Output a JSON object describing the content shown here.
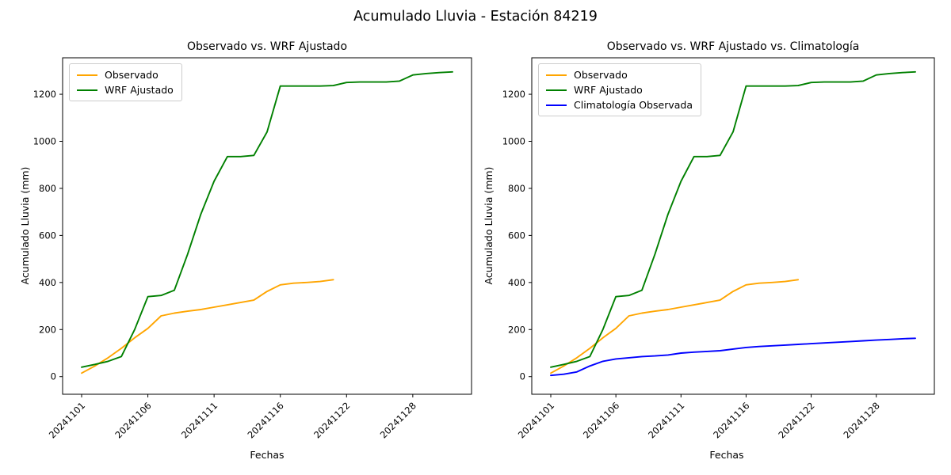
{
  "figure": {
    "suptitle": "Acumulado Lluvia - Estación 84219"
  },
  "chart_data": [
    {
      "type": "line",
      "title": "Observado vs. WRF Ajustado",
      "xlabel": "Fechas",
      "ylabel": "Acumulado Lluvia (mm)",
      "x_tick_labels": [
        "20241101",
        "20241106",
        "20241111",
        "20241116",
        "20241122",
        "20241128"
      ],
      "x_tick_positions": [
        0,
        5,
        10,
        15,
        20,
        25
      ],
      "n_points": 29,
      "ylim": [
        -75,
        1355
      ],
      "yticks": [
        0,
        200,
        400,
        600,
        800,
        1000,
        1200
      ],
      "grid": false,
      "legend_position": "upper-left",
      "series": [
        {
          "name": "Observado",
          "color": "#FFA500",
          "values": [
            15,
            45,
            80,
            120,
            165,
            205,
            258,
            270,
            278,
            285,
            295,
            305,
            315,
            325,
            362,
            390,
            397,
            400,
            404,
            412
          ]
        },
        {
          "name": "WRF Ajustado",
          "color": "#008000",
          "values": [
            40,
            52,
            65,
            85,
            200,
            340,
            345,
            367,
            520,
            690,
            830,
            935,
            935,
            940,
            1040,
            1235,
            1235,
            1235,
            1235,
            1237,
            1250,
            1252,
            1252,
            1252,
            1256,
            1282,
            1288,
            1292,
            1295
          ]
        }
      ]
    },
    {
      "type": "line",
      "title": "Observado vs. WRF Ajustado vs. Climatología",
      "xlabel": "Fechas",
      "ylabel": "Acumulado Lluvia (mm)",
      "x_tick_labels": [
        "20241101",
        "20241106",
        "20241111",
        "20241116",
        "20241122",
        "20241128"
      ],
      "x_tick_positions": [
        0,
        5,
        10,
        15,
        20,
        25
      ],
      "n_points": 29,
      "ylim": [
        -75,
        1355
      ],
      "yticks": [
        0,
        200,
        400,
        600,
        800,
        1000,
        1200
      ],
      "grid": false,
      "legend_position": "upper-left",
      "series": [
        {
          "name": "Observado",
          "color": "#FFA500",
          "values": [
            15,
            45,
            80,
            120,
            165,
            205,
            258,
            270,
            278,
            285,
            295,
            305,
            315,
            325,
            362,
            390,
            397,
            400,
            404,
            412
          ]
        },
        {
          "name": "WRF Ajustado",
          "color": "#008000",
          "values": [
            40,
            52,
            65,
            85,
            200,
            340,
            345,
            367,
            520,
            690,
            830,
            935,
            935,
            940,
            1040,
            1235,
            1235,
            1235,
            1235,
            1237,
            1250,
            1252,
            1252,
            1252,
            1256,
            1282,
            1288,
            1292,
            1295
          ]
        },
        {
          "name": "Climatología Observada",
          "color": "#0000FF",
          "values": [
            5,
            10,
            20,
            45,
            65,
            75,
            80,
            85,
            88,
            92,
            100,
            104,
            107,
            110,
            117,
            124,
            128,
            131,
            134,
            137,
            140,
            143,
            146,
            149,
            152,
            155,
            158,
            161,
            163
          ]
        }
      ]
    }
  ]
}
